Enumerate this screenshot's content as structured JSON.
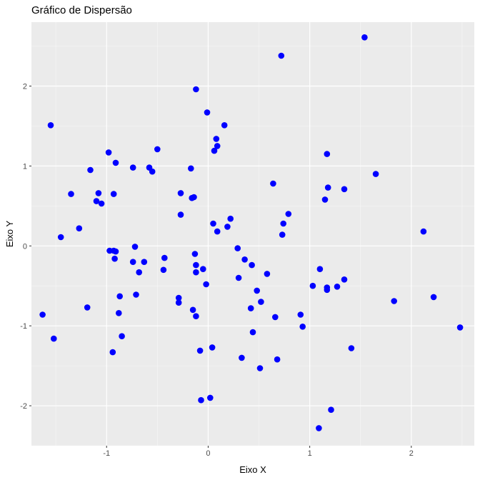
{
  "chart_data": {
    "type": "scatter",
    "title": "Gráfico de Dispersão",
    "xlabel": "Eixo X",
    "ylabel": "Eixo Y",
    "xlim": [
      -1.74,
      2.62
    ],
    "ylim": [
      -2.5,
      2.8
    ],
    "x_ticks": [
      -1,
      0,
      1,
      2
    ],
    "y_ticks": [
      -2,
      -1,
      0,
      1,
      2
    ],
    "grid": true,
    "panel_color": "#ebebeb",
    "point_color": "#0000ff",
    "points": [
      {
        "x": 1.54,
        "y": 2.61
      },
      {
        "x": 0.72,
        "y": 2.38
      },
      {
        "x": -0.12,
        "y": 1.96
      },
      {
        "x": -0.01,
        "y": 1.67
      },
      {
        "x": -1.55,
        "y": 1.51
      },
      {
        "x": 0.16,
        "y": 1.51
      },
      {
        "x": 0.08,
        "y": 1.34
      },
      {
        "x": 0.09,
        "y": 1.25
      },
      {
        "x": -0.5,
        "y": 1.21
      },
      {
        "x": 0.06,
        "y": 1.19
      },
      {
        "x": -0.98,
        "y": 1.17
      },
      {
        "x": 1.17,
        "y": 1.15
      },
      {
        "x": -0.91,
        "y": 1.04
      },
      {
        "x": -0.58,
        "y": 0.98
      },
      {
        "x": -0.74,
        "y": 0.98
      },
      {
        "x": -0.17,
        "y": 0.97
      },
      {
        "x": -1.16,
        "y": 0.95
      },
      {
        "x": -0.55,
        "y": 0.93
      },
      {
        "x": 1.65,
        "y": 0.9
      },
      {
        "x": 0.64,
        "y": 0.78
      },
      {
        "x": 1.18,
        "y": 0.73
      },
      {
        "x": 1.34,
        "y": 0.71
      },
      {
        "x": -1.08,
        "y": 0.66
      },
      {
        "x": -0.27,
        "y": 0.66
      },
      {
        "x": -1.35,
        "y": 0.65
      },
      {
        "x": -0.93,
        "y": 0.65
      },
      {
        "x": -0.16,
        "y": 0.6
      },
      {
        "x": -0.14,
        "y": 0.61
      },
      {
        "x": 1.15,
        "y": 0.58
      },
      {
        "x": -1.1,
        "y": 0.56
      },
      {
        "x": -1.05,
        "y": 0.53
      },
      {
        "x": 0.79,
        "y": 0.4
      },
      {
        "x": -0.27,
        "y": 0.39
      },
      {
        "x": 0.22,
        "y": 0.34
      },
      {
        "x": 0.05,
        "y": 0.28
      },
      {
        "x": 0.74,
        "y": 0.28
      },
      {
        "x": 0.19,
        "y": 0.24
      },
      {
        "x": -1.27,
        "y": 0.22
      },
      {
        "x": 0.09,
        "y": 0.18
      },
      {
        "x": 2.12,
        "y": 0.18
      },
      {
        "x": 0.73,
        "y": 0.14
      },
      {
        "x": -1.45,
        "y": 0.11
      },
      {
        "x": -0.72,
        "y": -0.01
      },
      {
        "x": 0.29,
        "y": -0.03
      },
      {
        "x": -0.97,
        "y": -0.06
      },
      {
        "x": -0.93,
        "y": -0.06
      },
      {
        "x": -0.91,
        "y": -0.07
      },
      {
        "x": -0.13,
        "y": -0.1
      },
      {
        "x": -0.43,
        "y": -0.15
      },
      {
        "x": -0.92,
        "y": -0.16
      },
      {
        "x": 0.36,
        "y": -0.17
      },
      {
        "x": -0.63,
        "y": -0.2
      },
      {
        "x": -0.74,
        "y": -0.2
      },
      {
        "x": -0.12,
        "y": -0.24
      },
      {
        "x": 0.43,
        "y": -0.24
      },
      {
        "x": -0.05,
        "y": -0.29
      },
      {
        "x": 1.1,
        "y": -0.29
      },
      {
        "x": -0.44,
        "y": -0.3
      },
      {
        "x": -0.12,
        "y": -0.33
      },
      {
        "x": -0.68,
        "y": -0.33
      },
      {
        "x": 0.58,
        "y": -0.35
      },
      {
        "x": 0.3,
        "y": -0.4
      },
      {
        "x": 1.34,
        "y": -0.42
      },
      {
        "x": -0.02,
        "y": -0.48
      },
      {
        "x": 1.03,
        "y": -0.5
      },
      {
        "x": 1.17,
        "y": -0.52
      },
      {
        "x": 1.27,
        "y": -0.51
      },
      {
        "x": 1.17,
        "y": -0.55
      },
      {
        "x": 0.48,
        "y": -0.56
      },
      {
        "x": -0.71,
        "y": -0.61
      },
      {
        "x": -0.87,
        "y": -0.63
      },
      {
        "x": -0.29,
        "y": -0.65
      },
      {
        "x": 2.22,
        "y": -0.64
      },
      {
        "x": -0.29,
        "y": -0.71
      },
      {
        "x": 0.52,
        "y": -0.7
      },
      {
        "x": 1.83,
        "y": -0.69
      },
      {
        "x": -1.19,
        "y": -0.77
      },
      {
        "x": 0.42,
        "y": -0.78
      },
      {
        "x": -0.15,
        "y": -0.8
      },
      {
        "x": -0.88,
        "y": -0.84
      },
      {
        "x": -1.63,
        "y": -0.86
      },
      {
        "x": 0.91,
        "y": -0.86
      },
      {
        "x": -0.12,
        "y": -0.88
      },
      {
        "x": 0.66,
        "y": -0.89
      },
      {
        "x": 0.93,
        "y": -1.01
      },
      {
        "x": 2.48,
        "y": -1.02
      },
      {
        "x": 0.44,
        "y": -1.08
      },
      {
        "x": -0.85,
        "y": -1.13
      },
      {
        "x": -1.52,
        "y": -1.16
      },
      {
        "x": 0.04,
        "y": -1.27
      },
      {
        "x": 1.41,
        "y": -1.28
      },
      {
        "x": -0.08,
        "y": -1.31
      },
      {
        "x": -0.94,
        "y": -1.33
      },
      {
        "x": 0.33,
        "y": -1.4
      },
      {
        "x": 0.68,
        "y": -1.42
      },
      {
        "x": 0.51,
        "y": -1.53
      },
      {
        "x": 0.02,
        "y": -1.9
      },
      {
        "x": -0.07,
        "y": -1.93
      },
      {
        "x": 1.21,
        "y": -2.05
      },
      {
        "x": 1.09,
        "y": -2.28
      }
    ]
  }
}
